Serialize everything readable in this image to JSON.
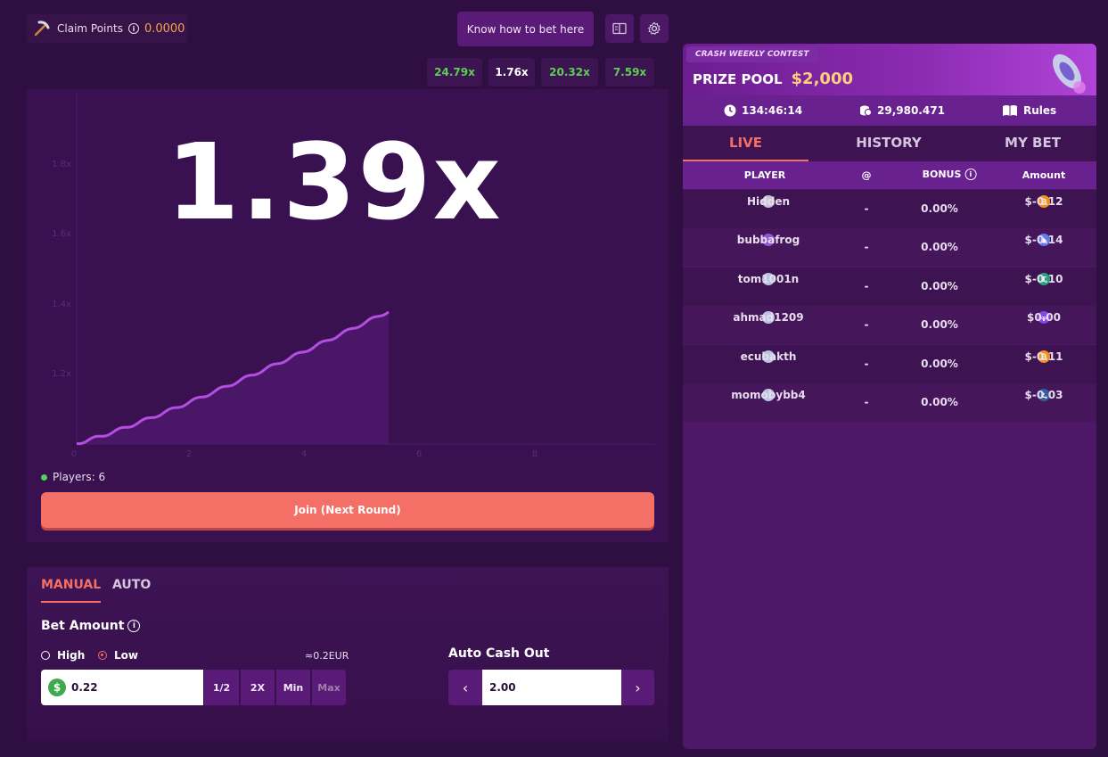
{
  "header": {
    "claim_label": "Claim Points",
    "claim_points": "0.0000",
    "know_bet": "Know how to bet here"
  },
  "history_multipliers": [
    {
      "label": "24.79x",
      "color": "#5ccf53"
    },
    {
      "label": "1.76x",
      "color": "#ffffff"
    },
    {
      "label": "20.32x",
      "color": "#5ccf53"
    },
    {
      "label": "7.59x",
      "color": "#5ccf53"
    }
  ],
  "game": {
    "multiplier": "1.39x",
    "y_ticks": [
      "1.8x",
      "1.6x",
      "1.4x",
      "1.2x"
    ],
    "x_ticks": [
      "0",
      "2",
      "4",
      "6",
      "8"
    ],
    "players_label": "Players: 6",
    "join_label": "Join (Next Round)"
  },
  "bet": {
    "tab_manual": "MANUAL",
    "tab_auto": "AUTO",
    "amount_label": "Bet Amount",
    "high_label": "High",
    "low_label": "Low",
    "selected_risk": "Low",
    "eur_equiv": "≈0.2EUR",
    "amount_value": "0.22",
    "currency_symbol": "$",
    "half": "1/2",
    "double": "2X",
    "min": "Min",
    "max": "Max",
    "auto_cashout_label": "Auto Cash Out",
    "auto_cashout_value": "2.00"
  },
  "contest": {
    "tag": "CRASH WEEKLY CONTEST",
    "prize_label": "PRIZE POOL",
    "prize_amount": "$2,000",
    "timer": "134:46:14",
    "pool_count": "29,980.471",
    "rules": "Rules"
  },
  "tabs": {
    "live": "LIVE",
    "history": "HISTORY",
    "my_bet": "MY BET",
    "active": "LIVE"
  },
  "table": {
    "headers": {
      "player": "PLAYER",
      "at": "@",
      "bonus": "BONUS",
      "amount": "Amount"
    },
    "rows": [
      {
        "player": "Hidden",
        "at": "-",
        "bonus": "0.00%",
        "amount": "$-0.12",
        "currency": "bitcoin",
        "cur_color": "#f2921b",
        "cur_glyph": "₿",
        "avatar_color": "#c9c3d6"
      },
      {
        "player": "bubbafrog",
        "at": "-",
        "bonus": "0.00%",
        "amount": "$-0.14",
        "currency": "ethereum",
        "cur_color": "#627eea",
        "cur_glyph": "◆",
        "avatar_color": "#8a5ad6"
      },
      {
        "player": "tom1001n",
        "at": "-",
        "bonus": "0.00%",
        "amount": "$-0.10",
        "currency": "tether",
        "cur_color": "#26a17b",
        "cur_glyph": "T",
        "avatar_color": "#b8c6e0"
      },
      {
        "player": "ahmad1209",
        "at": "-",
        "bonus": "0.00%",
        "amount": "$0.00",
        "currency": "polygon",
        "cur_color": "#8247e5",
        "cur_glyph": "∞",
        "avatar_color": "#b8c6e0"
      },
      {
        "player": "ecubakth",
        "at": "-",
        "bonus": "0.00%",
        "amount": "$-0.11",
        "currency": "bitcoin",
        "cur_color": "#f2921b",
        "cur_glyph": "₿",
        "avatar_color": "#b8c6e0"
      },
      {
        "player": "momobybb4",
        "at": "-",
        "bonus": "0.00%",
        "amount": "$-0.03",
        "currency": "litecoin",
        "cur_color": "#345d9d",
        "cur_glyph": "Ł",
        "avatar_color": "#b8c6e0"
      }
    ]
  },
  "colors": {
    "accent": "#f46f66",
    "positive": "#5ccf53",
    "curve": "#b44ee0"
  }
}
